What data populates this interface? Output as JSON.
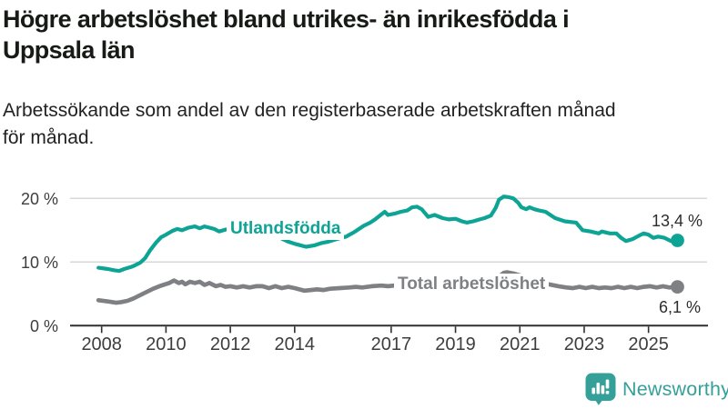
{
  "header": {
    "title_lines": [
      "Högre arbetslöshet bland utrikes- än inrikesfödda i",
      "Uppsala län"
    ],
    "subtitle_lines": [
      "Arbetssökande som andel av den registerbaserade arbetskraften månad",
      "för månad."
    ]
  },
  "footer": {
    "brand": "Newsworthy"
  },
  "colors": {
    "accent_teal": "#0ea495",
    "line_gray": "#7f8083",
    "logo_teal": "#35a09a",
    "grid_gray": "#d8d8d8",
    "axis_dark": "#2f2f2f"
  },
  "chart_data": {
    "type": "line",
    "title": "Högre arbetslöshet bland utrikes- än inrikesfödda i Uppsala län",
    "subtitle": "Arbetssökande som andel av den registerbaserade arbetskraften månad för månad.",
    "x_tick_values": [
      2008,
      2010,
      2012,
      2014,
      2017,
      2019,
      2021,
      2023,
      2025
    ],
    "x_tick_labels": [
      "2008",
      "2010",
      "2012",
      "2014",
      "2017",
      "2019",
      "2021",
      "2023",
      "2025"
    ],
    "y_tick_values": [
      0,
      10,
      20
    ],
    "y_tick_labels": [
      "0 %",
      "10 %",
      "20 %"
    ],
    "xlim": [
      2007.8,
      2026.2
    ],
    "ylim": [
      0,
      21
    ],
    "grid": "horizontal",
    "legend_position": "inline-labels",
    "series": [
      {
        "name": "Utlandsfödda",
        "color": "#0ea495",
        "end_label": "13,4 %",
        "last_value": 13.4,
        "points": [
          [
            2007.9,
            9.1
          ],
          [
            2008.2,
            8.9
          ],
          [
            2008.4,
            8.7
          ],
          [
            2008.55,
            8.6
          ],
          [
            2008.7,
            8.9
          ],
          [
            2008.9,
            9.2
          ],
          [
            2009.0,
            9.4
          ],
          [
            2009.2,
            9.9
          ],
          [
            2009.35,
            10.6
          ],
          [
            2009.5,
            11.8
          ],
          [
            2009.7,
            13.1
          ],
          [
            2009.85,
            13.9
          ],
          [
            2010.0,
            14.3
          ],
          [
            2010.2,
            14.9
          ],
          [
            2010.35,
            15.2
          ],
          [
            2010.5,
            15.0
          ],
          [
            2010.7,
            15.4
          ],
          [
            2010.9,
            15.6
          ],
          [
            2011.05,
            15.3
          ],
          [
            2011.2,
            15.6
          ],
          [
            2011.35,
            15.4
          ],
          [
            2011.5,
            15.2
          ],
          [
            2011.65,
            14.8
          ],
          [
            2011.85,
            15.1
          ],
          [
            2012.0,
            15.2
          ],
          [
            2012.2,
            14.7
          ],
          [
            2012.45,
            15.0
          ],
          [
            2012.65,
            14.8
          ],
          [
            2012.85,
            14.9
          ],
          [
            2013.05,
            14.5
          ],
          [
            2013.3,
            14.2
          ],
          [
            2013.55,
            13.8
          ],
          [
            2013.8,
            13.2
          ],
          [
            2014.05,
            12.8
          ],
          [
            2014.35,
            12.4
          ],
          [
            2014.6,
            12.6
          ],
          [
            2014.85,
            13.0
          ],
          [
            2015.05,
            13.2
          ],
          [
            2015.3,
            13.6
          ],
          [
            2015.6,
            14.0
          ],
          [
            2015.85,
            14.7
          ],
          [
            2016.0,
            15.2
          ],
          [
            2016.15,
            15.7
          ],
          [
            2016.35,
            16.2
          ],
          [
            2016.5,
            16.7
          ],
          [
            2016.7,
            17.5
          ],
          [
            2016.8,
            17.9
          ],
          [
            2016.9,
            17.4
          ],
          [
            2017.1,
            17.6
          ],
          [
            2017.3,
            17.9
          ],
          [
            2017.5,
            18.1
          ],
          [
            2017.65,
            18.6
          ],
          [
            2017.8,
            18.7
          ],
          [
            2017.95,
            18.3
          ],
          [
            2018.15,
            17.1
          ],
          [
            2018.35,
            17.4
          ],
          [
            2018.6,
            16.9
          ],
          [
            2018.8,
            16.7
          ],
          [
            2019.0,
            16.8
          ],
          [
            2019.2,
            16.4
          ],
          [
            2019.35,
            16.2
          ],
          [
            2019.55,
            16.4
          ],
          [
            2019.75,
            16.7
          ],
          [
            2019.9,
            16.9
          ],
          [
            2020.1,
            17.3
          ],
          [
            2020.25,
            18.5
          ],
          [
            2020.35,
            19.8
          ],
          [
            2020.5,
            20.3
          ],
          [
            2020.65,
            20.2
          ],
          [
            2020.8,
            20.0
          ],
          [
            2020.95,
            19.3
          ],
          [
            2021.05,
            18.6
          ],
          [
            2021.2,
            18.3
          ],
          [
            2021.3,
            18.6
          ],
          [
            2021.45,
            18.3
          ],
          [
            2021.6,
            18.1
          ],
          [
            2021.8,
            17.9
          ],
          [
            2022.1,
            16.9
          ],
          [
            2022.4,
            16.4
          ],
          [
            2022.75,
            16.2
          ],
          [
            2022.95,
            15.0
          ],
          [
            2023.2,
            14.8
          ],
          [
            2023.45,
            14.5
          ],
          [
            2023.55,
            14.8
          ],
          [
            2023.8,
            14.5
          ],
          [
            2024.0,
            14.5
          ],
          [
            2024.15,
            13.8
          ],
          [
            2024.3,
            13.3
          ],
          [
            2024.5,
            13.6
          ],
          [
            2024.65,
            14.0
          ],
          [
            2024.85,
            14.5
          ],
          [
            2025.0,
            14.3
          ],
          [
            2025.15,
            13.8
          ],
          [
            2025.3,
            14.0
          ],
          [
            2025.5,
            13.8
          ],
          [
            2025.7,
            13.3
          ],
          [
            2025.9,
            13.4
          ]
        ]
      },
      {
        "name": "Total arbetslöshet",
        "color": "#7f8083",
        "end_label": "6,1 %",
        "last_value": 6.1,
        "points": [
          [
            2007.9,
            4.0
          ],
          [
            2008.2,
            3.8
          ],
          [
            2008.45,
            3.6
          ],
          [
            2008.6,
            3.7
          ],
          [
            2008.8,
            3.9
          ],
          [
            2009.0,
            4.3
          ],
          [
            2009.2,
            4.8
          ],
          [
            2009.4,
            5.3
          ],
          [
            2009.6,
            5.8
          ],
          [
            2009.85,
            6.3
          ],
          [
            2010.1,
            6.7
          ],
          [
            2010.25,
            7.1
          ],
          [
            2010.4,
            6.7
          ],
          [
            2010.5,
            6.9
          ],
          [
            2010.6,
            6.5
          ],
          [
            2010.75,
            6.9
          ],
          [
            2010.9,
            6.7
          ],
          [
            2011.05,
            6.9
          ],
          [
            2011.2,
            6.4
          ],
          [
            2011.35,
            6.7
          ],
          [
            2011.55,
            6.2
          ],
          [
            2011.7,
            6.4
          ],
          [
            2011.85,
            6.1
          ],
          [
            2012.0,
            6.2
          ],
          [
            2012.2,
            6.0
          ],
          [
            2012.4,
            6.2
          ],
          [
            2012.6,
            6.0
          ],
          [
            2012.8,
            6.2
          ],
          [
            2013.0,
            6.2
          ],
          [
            2013.2,
            5.9
          ],
          [
            2013.4,
            6.2
          ],
          [
            2013.6,
            5.9
          ],
          [
            2013.8,
            6.1
          ],
          [
            2014.0,
            5.9
          ],
          [
            2014.3,
            5.5
          ],
          [
            2014.5,
            5.6
          ],
          [
            2014.7,
            5.7
          ],
          [
            2014.9,
            5.6
          ],
          [
            2015.1,
            5.8
          ],
          [
            2015.4,
            5.9
          ],
          [
            2015.7,
            6.0
          ],
          [
            2015.9,
            6.1
          ],
          [
            2016.1,
            6.0
          ],
          [
            2016.4,
            6.2
          ],
          [
            2016.7,
            6.3
          ],
          [
            2016.9,
            6.2
          ],
          [
            2017.1,
            6.3
          ],
          [
            2017.4,
            6.1
          ],
          [
            2017.7,
            6.0
          ],
          [
            2017.9,
            5.9
          ],
          [
            2018.2,
            5.8
          ],
          [
            2018.6,
            5.6
          ],
          [
            2019.0,
            5.7
          ],
          [
            2019.4,
            5.8
          ],
          [
            2019.8,
            5.9
          ],
          [
            2020.05,
            6.1
          ],
          [
            2020.3,
            7.5
          ],
          [
            2020.5,
            8.3
          ],
          [
            2020.6,
            8.4
          ],
          [
            2020.8,
            8.2
          ],
          [
            2021.0,
            7.9
          ],
          [
            2021.3,
            7.4
          ],
          [
            2021.6,
            7.0
          ],
          [
            2021.9,
            6.5
          ],
          [
            2022.2,
            6.2
          ],
          [
            2022.45,
            6.0
          ],
          [
            2022.65,
            5.9
          ],
          [
            2022.85,
            6.1
          ],
          [
            2023.05,
            5.9
          ],
          [
            2023.25,
            6.1
          ],
          [
            2023.45,
            5.9
          ],
          [
            2023.65,
            6.0
          ],
          [
            2023.85,
            5.9
          ],
          [
            2024.05,
            6.1
          ],
          [
            2024.25,
            5.9
          ],
          [
            2024.45,
            6.1
          ],
          [
            2024.65,
            5.9
          ],
          [
            2024.85,
            6.1
          ],
          [
            2025.05,
            6.2
          ],
          [
            2025.25,
            6.0
          ],
          [
            2025.45,
            6.2
          ],
          [
            2025.65,
            6.0
          ],
          [
            2025.9,
            6.1
          ]
        ]
      }
    ]
  }
}
